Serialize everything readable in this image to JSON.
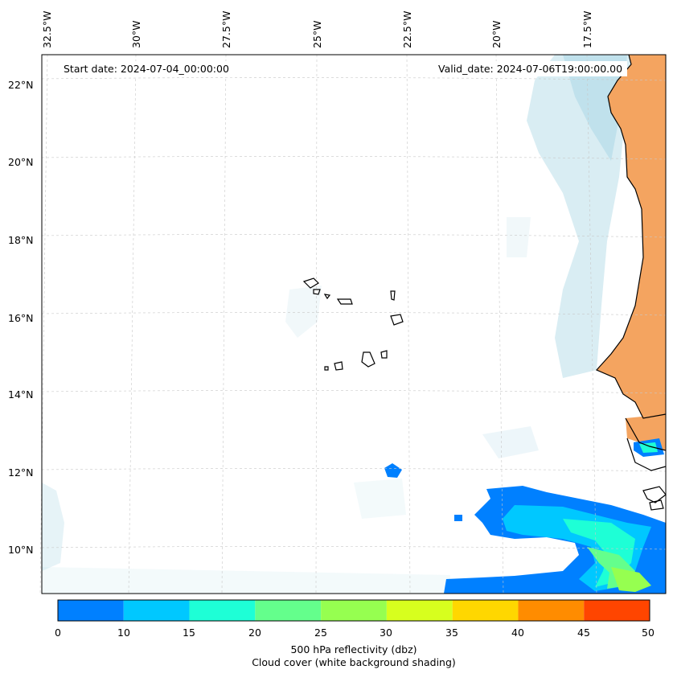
{
  "header": {
    "start_date": "Start date: 2024-07-04_00:00:00",
    "valid_date": "Valid_date: 2024-07-06T19:00:00.00"
  },
  "map": {
    "extent_lon": [
      -33.0,
      -16.0
    ],
    "extent_lat": [
      9.0,
      22.8
    ],
    "lon_ticks": [
      "32.5°W",
      "30°W",
      "27.5°W",
      "25°W",
      "22.5°W",
      "20°W",
      "17.5°W"
    ],
    "lat_ticks": [
      "22°N",
      "20°N",
      "18°N",
      "16°N",
      "14°N",
      "12°N",
      "10°N"
    ],
    "gridlines": true,
    "land_color": "#f4a460",
    "cloud_color": "#add8e6"
  },
  "colorbar": {
    "label_line1": "500 hPa reflectivity (dbz)",
    "label_line2": "Cloud cover (white background shading)",
    "ticks": [
      "0",
      "10",
      "15",
      "20",
      "25",
      "30",
      "35",
      "40",
      "45",
      "50"
    ],
    "colors": [
      "#0080ff",
      "#00c8ff",
      "#1effd6",
      "#64ff8c",
      "#96ff50",
      "#d7ff1e",
      "#ffd700",
      "#ff8c00",
      "#ff4500"
    ]
  }
}
